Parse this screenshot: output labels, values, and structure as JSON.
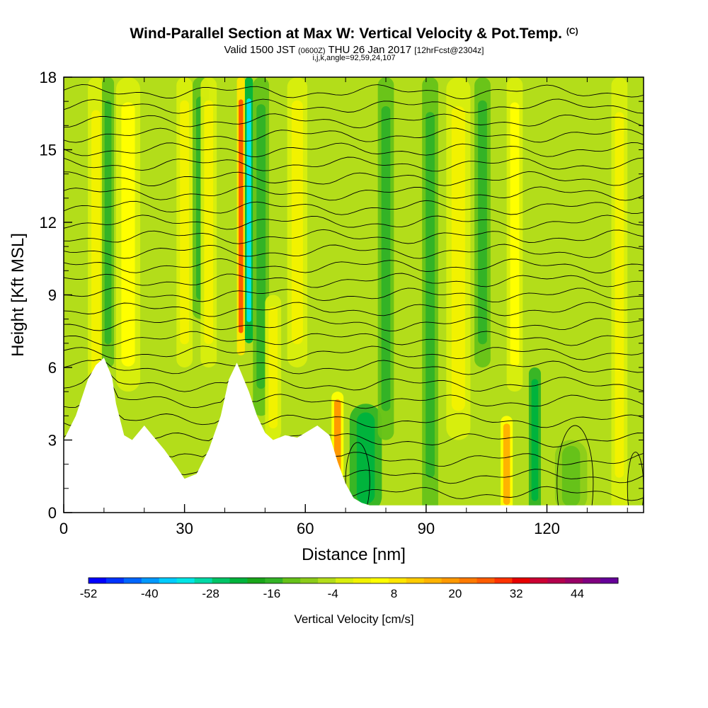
{
  "chart_data": {
    "type": "heatmap",
    "title": "Wind-Parallel Section at Max W: Vertical Velocity & Pot.Temp.",
    "title_mark": "(C)",
    "subtitle_parts": [
      "Valid 1500 JST",
      "(0600Z)",
      "THU 26 Jan 2017",
      "[12hrFcst@2304z]"
    ],
    "subtitle2": "i,j,k,angle=92,59,24,107",
    "xlabel": "Distance [nm]",
    "ylabel": "Height [Kft MSL]",
    "xlim": [
      0,
      144
    ],
    "ylim": [
      0,
      18
    ],
    "x_ticks": [
      0,
      30,
      60,
      90,
      120
    ],
    "y_ticks": [
      0,
      3,
      6,
      9,
      12,
      15,
      18
    ],
    "colorbar": {
      "label": "Vertical Velocity [cm/s]",
      "range": [
        -52,
        52
      ],
      "step": 4,
      "tick_values": [
        -52,
        -40,
        -28,
        -16,
        -4,
        8,
        20,
        32,
        44
      ]
    },
    "terrain_profile": {
      "x": [
        0,
        3,
        6,
        8,
        10,
        12,
        13,
        15,
        17,
        20,
        22,
        25,
        28,
        30,
        33,
        36,
        39,
        41,
        43,
        44,
        46,
        48,
        50,
        52,
        55,
        58,
        60,
        63,
        66,
        68,
        70,
        72,
        74,
        76,
        80,
        90,
        100,
        110,
        120,
        130,
        144
      ],
      "height": [
        3.0,
        4.0,
        5.5,
        6.1,
        6.4,
        5.6,
        4.5,
        3.2,
        3.0,
        3.6,
        3.2,
        2.6,
        1.9,
        1.4,
        1.6,
        2.6,
        4.0,
        5.5,
        6.2,
        5.8,
        5.0,
        4.0,
        3.3,
        3.0,
        3.2,
        3.1,
        3.3,
        3.6,
        3.2,
        2.1,
        1.2,
        0.6,
        0.4,
        0.3,
        0.3,
        0.3,
        0.3,
        0.3,
        0.3,
        0.3,
        0.3
      ]
    },
    "velocity_features": [
      {
        "x": 8,
        "width": 4,
        "y": [
          1,
          18
        ],
        "w": 10
      },
      {
        "x": 11,
        "width": 3,
        "y": [
          6,
          18
        ],
        "w": -10
      },
      {
        "x": 16,
        "width": 6,
        "y": [
          5,
          18
        ],
        "w": 12
      },
      {
        "x": 30,
        "width": 4,
        "y": [
          6,
          18
        ],
        "w": 8
      },
      {
        "x": 34,
        "width": 4,
        "y": [
          8,
          18
        ],
        "w": -12
      },
      {
        "x": 36,
        "width": 4,
        "y": [
          6,
          18
        ],
        "w": 10
      },
      {
        "x": 44,
        "width": 2,
        "y": [
          6.5,
          18
        ],
        "w": 36
      },
      {
        "x": 46,
        "width": 2,
        "y": [
          7,
          18
        ],
        "w": -30
      },
      {
        "x": 49,
        "width": 4,
        "y": [
          4,
          18
        ],
        "w": -10
      },
      {
        "x": 52,
        "width": 4,
        "y": [
          3,
          9
        ],
        "w": 10
      },
      {
        "x": 58,
        "width": 5,
        "y": [
          6,
          18
        ],
        "w": 10
      },
      {
        "x": 68,
        "width": 3,
        "y": [
          1,
          5
        ],
        "w": 28
      },
      {
        "x": 75,
        "width": 8,
        "y": [
          0,
          4.5
        ],
        "w": -18
      },
      {
        "x": 80,
        "width": 4,
        "y": [
          3,
          18
        ],
        "w": -10
      },
      {
        "x": 91,
        "width": 4,
        "y": [
          0,
          18
        ],
        "w": -10
      },
      {
        "x": 98,
        "width": 6,
        "y": [
          3,
          18
        ],
        "w": 10
      },
      {
        "x": 104,
        "width": 4,
        "y": [
          6,
          18
        ],
        "w": -10
      },
      {
        "x": 110,
        "width": 3,
        "y": [
          0,
          4
        ],
        "w": 26
      },
      {
        "x": 112,
        "width": 4,
        "y": [
          5,
          18
        ],
        "w": 14
      },
      {
        "x": 117,
        "width": 3,
        "y": [
          0,
          6
        ],
        "w": -20
      },
      {
        "x": 126,
        "width": 8,
        "y": [
          0,
          3
        ],
        "w": -8
      },
      {
        "x": 138,
        "width": 4,
        "y": [
          0,
          18
        ],
        "w": 10
      }
    ],
    "isentrope_contours": [
      {
        "level": "",
        "base": 0.8
      },
      {
        "level": "",
        "base": 1.5
      },
      {
        "level": "",
        "base": 2.2
      },
      {
        "level": "",
        "base": 3.0
      },
      {
        "level": "",
        "base": 3.8
      },
      {
        "level": "",
        "base": 4.6
      },
      {
        "level": "",
        "base": 5.3
      },
      {
        "level": "",
        "base": 6.0
      },
      {
        "level": "",
        "base": 6.6
      },
      {
        "level": "",
        "base": 7.2
      },
      {
        "level": "",
        "base": 7.8
      },
      {
        "level": "",
        "base": 8.4
      },
      {
        "level": "",
        "base": 9.0
      },
      {
        "level": "",
        "base": 9.6
      },
      {
        "level": "",
        "base": 10.2
      },
      {
        "level": "",
        "base": 10.8
      },
      {
        "level": "",
        "base": 11.4
      },
      {
        "level": "",
        "base": 12.0
      },
      {
        "level": "",
        "base": 12.6
      },
      {
        "level": "",
        "base": 13.2
      },
      {
        "level": "",
        "base": 13.8
      },
      {
        "level": "",
        "base": 14.4
      },
      {
        "level": "",
        "base": 15.0
      },
      {
        "level": "",
        "base": 15.6
      },
      {
        "level": "",
        "base": 16.2
      },
      {
        "level": "",
        "base": 16.8
      },
      {
        "level": "",
        "base": 17.4
      }
    ],
    "closed_contours": [
      {
        "x": 73,
        "y": 1.3,
        "rx": 3,
        "ry": 1.6
      },
      {
        "x": 127,
        "y": 1.2,
        "rx": 4.5,
        "ry": 2.4
      },
      {
        "x": 142,
        "y": 1.0,
        "rx": 2,
        "ry": 1.5
      }
    ]
  },
  "colors": {
    "bands": [
      "#0000ff",
      "#0033ff",
      "#0066ff",
      "#0099ff",
      "#00ccff",
      "#00e5e5",
      "#00d9a6",
      "#00c466",
      "#00b33c",
      "#1aa61a",
      "#33b326",
      "#66c219",
      "#8ccc1a",
      "#b3dd1a",
      "#d9ee0d",
      "#f2f200",
      "#ffff00",
      "#ffe600",
      "#ffcc00",
      "#ffb300",
      "#ff9900",
      "#ff7a00",
      "#ff5c00",
      "#ff3300",
      "#e60000",
      "#cc0033",
      "#b3004d",
      "#990066",
      "#800080",
      "#660099"
    ],
    "terrain": "#ffffff",
    "contour": "#000000"
  }
}
